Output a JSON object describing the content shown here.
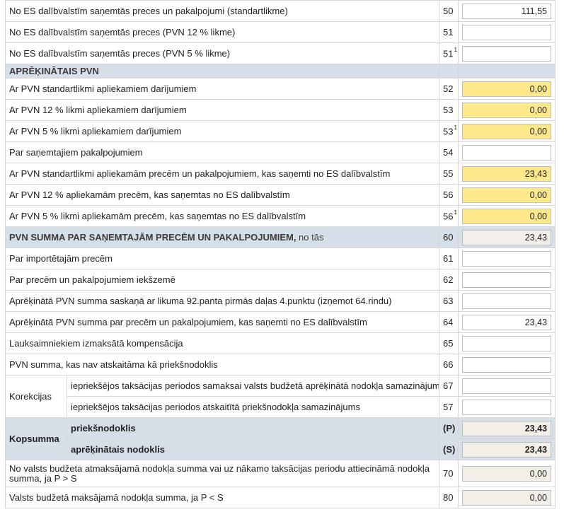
{
  "rows_top": [
    {
      "label": "No ES dalībvalstīm saņemtās preces un pakalpojumi (standartlikme)",
      "code": "50",
      "sup": "",
      "value": "111,55"
    },
    {
      "label": "No ES dalībvalstīm saņemtās preces (PVN 12 % likme)",
      "code": "51",
      "sup": "",
      "value": ""
    },
    {
      "label": "No ES dalībvalstīm saņemtās preces (PVN 5 % likme)",
      "code": "51",
      "sup": "1",
      "value": ""
    }
  ],
  "section_apreķinātais": {
    "label": "APRĒĶINĀTAIS PVN"
  },
  "rows_calc": [
    {
      "label": "Ar PVN standartlikmi apliekamiem darījumiem",
      "code": "52",
      "sup": "",
      "value": "0,00"
    },
    {
      "label": "Ar PVN 12 % likmi apliekamiem darījumiem",
      "code": "53",
      "sup": "",
      "value": "0,00"
    },
    {
      "label": "Ar PVN 5 % likmi apliekamiem darījumiem",
      "code": "53",
      "sup": "1",
      "value": "0,00"
    },
    {
      "label": "Par saņemtajiem pakalpojumiem",
      "code": "54",
      "sup": "",
      "value": ""
    },
    {
      "label": "Ar PVN standartlikmi apliekamām precēm un pakalpojumiem, kas saņemti no ES dalībvalstīm",
      "code": "55",
      "sup": "",
      "value": "23,43"
    },
    {
      "label": "Ar PVN 12 % apliekamām precēm, kas saņemtas no ES dalībvalstīm",
      "code": "56",
      "sup": "",
      "value": "0,00"
    },
    {
      "label": "Ar PVN 5 % likmi apliekamām precēm, kas saņemtas no ES dalībvalstīm",
      "code": "56",
      "sup": "1",
      "value": "0,00"
    }
  ],
  "section_summa": {
    "label_bold": "PVN SUMMA PAR SAŅEMTAJĀM PRECĒM UN PAKALPOJUMIEM,",
    "label_rest": " no tās",
    "code": "60",
    "value": "23,43"
  },
  "rows_summa": [
    {
      "label": "Par importētajām precēm",
      "code": "61",
      "value": ""
    },
    {
      "label": "Par precēm un pakalpojumiem iekšzemē",
      "code": "62",
      "value": ""
    },
    {
      "label": "Aprēķinātā PVN summa saskaņā ar likuma 92.panta pirmās daļas 4.punktu (izņemot 64.rindu)",
      "code": "63",
      "value": ""
    },
    {
      "label": "Aprēķinātā PVN summa par precēm un pakalpojumiem, kas saņemti no ES dalībvalstīm",
      "code": "64",
      "value": "23,43"
    },
    {
      "label": "Lauksaimniekiem izmaksātā kompensācija",
      "code": "65",
      "value": ""
    },
    {
      "label": "PVN summa, kas nav atskaitāma kā priekšnodoklis",
      "code": "66",
      "value": ""
    }
  ],
  "korekcijas": {
    "label": "Korekcijas",
    "rows": [
      {
        "label": "iepriekšējos taksācijas periodos samaksai valsts budžetā aprēķinātā nodokļa samazinājums",
        "code": "67",
        "value": ""
      },
      {
        "label": "iepriekšējos taksācijas periodos atskaitītā priekšnodokļa samazinājums",
        "code": "57",
        "value": ""
      }
    ]
  },
  "kopsumma": {
    "label": "Kopsumma",
    "rows": [
      {
        "label": "priekšnodoklis",
        "code": "(P)",
        "value": "23,43"
      },
      {
        "label": "aprēķinātais nodoklis",
        "code": "(S)",
        "value": "23,43"
      }
    ]
  },
  "rows_bottom": [
    {
      "label": "No valsts budžeta atmaksājamā nodokļa summa vai uz nākamo taksācijas periodu attiecināmā nodokļa summa, ja P > S",
      "code": "70",
      "value": "0,00"
    },
    {
      "label": "Valsts budžetā maksājamā nodokļa summa, ja P < S",
      "code": "80",
      "value": "0,00"
    }
  ]
}
